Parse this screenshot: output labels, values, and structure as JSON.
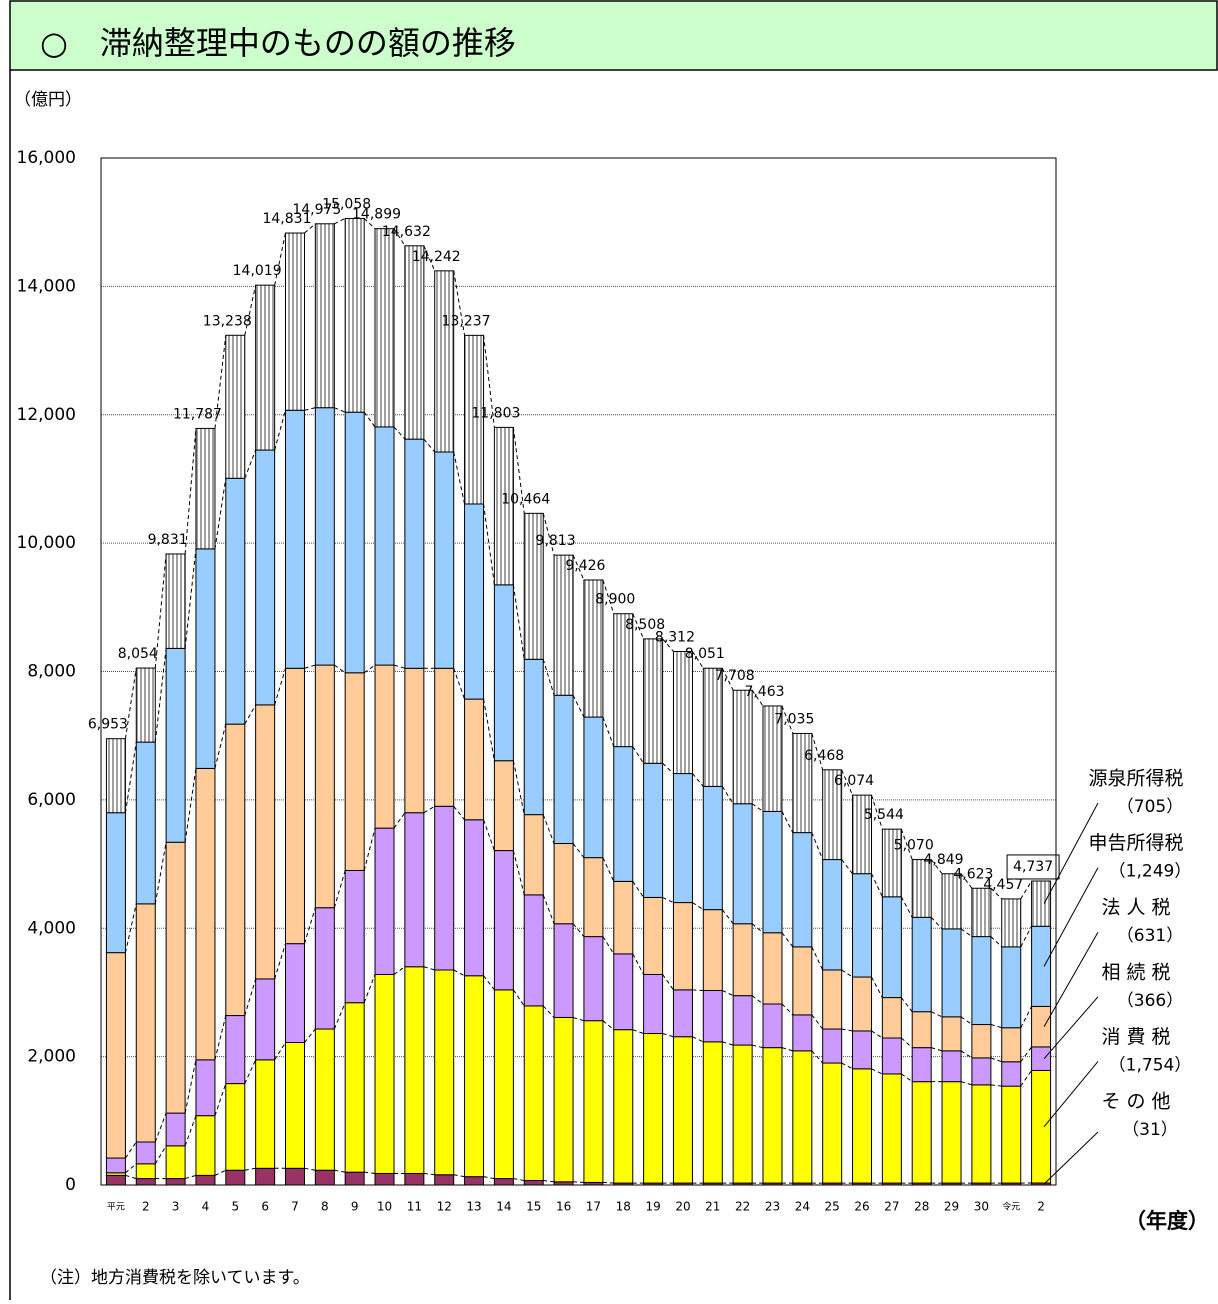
{
  "chart_data": {
    "type": "stacked_bar",
    "title": "○　滞納整理中のものの額の推移",
    "y_unit": "（億円）",
    "x_unit": "（年度）",
    "note": "（注）地方消費税を除いています。",
    "categories": [
      "平元",
      "2",
      "3",
      "4",
      "5",
      "6",
      "7",
      "8",
      "9",
      "10",
      "11",
      "12",
      "13",
      "14",
      "15",
      "16",
      "17",
      "18",
      "19",
      "20",
      "21",
      "22",
      "23",
      "24",
      "25",
      "26",
      "27",
      "28",
      "29",
      "30",
      "令元",
      "2"
    ],
    "totals": [
      6953,
      8054,
      9831,
      11787,
      13238,
      14019,
      14831,
      14975,
      15058,
      14899,
      14632,
      14242,
      13237,
      11803,
      10464,
      9813,
      9426,
      8900,
      8508,
      8312,
      8051,
      7708,
      7463,
      7035,
      6468,
      6074,
      5544,
      5070,
      4849,
      4623,
      4457,
      4737
    ],
    "total_labels": [
      "6,953",
      "8,054",
      "9,831",
      "11,787",
      "13,238",
      "14,019",
      "14,831",
      "14,975",
      "15,058",
      "14,899",
      "14,632",
      "14,242",
      "13,237",
      "11,803",
      "10,464",
      "9,813",
      "9,426",
      "8,900",
      "8,508",
      "8,312",
      "8,051",
      "7,708",
      "7,463",
      "7,035",
      "6,468",
      "6,074",
      "5,544",
      "5,070",
      "4,849",
      "4,623",
      "4,457",
      "4,737"
    ],
    "series": [
      {
        "name": "そ の 他",
        "color": "#993366",
        "annotation": "（31）",
        "values": [
          150,
          100,
          100,
          150,
          230,
          260,
          260,
          230,
          200,
          180,
          180,
          160,
          130,
          100,
          70,
          50,
          40,
          30,
          30,
          30,
          30,
          30,
          30,
          30,
          30,
          30,
          30,
          30,
          30,
          30,
          30,
          31
        ]
      },
      {
        "name": "消 費 税",
        "color": "#ffff00",
        "annotation": "（1,754）",
        "values": [
          40,
          230,
          510,
          930,
          1350,
          1690,
          1960,
          2200,
          2640,
          3100,
          3220,
          3190,
          3130,
          2940,
          2720,
          2560,
          2520,
          2390,
          2330,
          2280,
          2200,
          2150,
          2110,
          2060,
          1870,
          1780,
          1700,
          1580,
          1580,
          1530,
          1510,
          1754
        ]
      },
      {
        "name": "相 続 税",
        "color": "#cc99ff",
        "annotation": "（366）",
        "values": [
          230,
          340,
          510,
          870,
          1060,
          1260,
          1540,
          1890,
          2060,
          2280,
          2400,
          2550,
          2430,
          2170,
          1730,
          1460,
          1310,
          1180,
          920,
          730,
          800,
          770,
          680,
          560,
          530,
          590,
          560,
          530,
          480,
          420,
          380,
          366
        ]
      },
      {
        "name": "法 人 税",
        "color": "#ffcc99",
        "annotation": "（631）",
        "values": [
          3200,
          3710,
          4220,
          4540,
          4540,
          4270,
          4290,
          3780,
          3080,
          2540,
          2250,
          2150,
          1880,
          1400,
          1250,
          1250,
          1230,
          1130,
          1200,
          1360,
          1260,
          1120,
          1110,
          1060,
          920,
          840,
          630,
          560,
          530,
          520,
          530,
          631
        ]
      },
      {
        "name": "申告所得税",
        "color": "#99ccff",
        "annotation": "（1,249）",
        "values": [
          2180,
          2520,
          3020,
          3420,
          3830,
          3970,
          4020,
          4010,
          4060,
          3710,
          3570,
          3370,
          3040,
          2740,
          2420,
          2310,
          2190,
          2100,
          2090,
          2010,
          1920,
          1870,
          1890,
          1780,
          1720,
          1610,
          1570,
          1470,
          1370,
          1370,
          1260,
          1249
        ]
      },
      {
        "name": "源泉所得税",
        "color": "#a0a0a0",
        "pattern": "vertical-stripes",
        "annotation": "（705）",
        "values": [
          1153,
          1154,
          1471,
          1877,
          2228,
          2569,
          2761,
          2865,
          3018,
          3089,
          3012,
          2822,
          2627,
          2453,
          2274,
          2183,
          2136,
          2070,
          1938,
          1902,
          1841,
          1768,
          1643,
          1545,
          1398,
          1224,
          1054,
          900,
          859,
          753,
          747,
          705
        ]
      }
    ],
    "ylim": [
      0,
      16000
    ],
    "yticks": [
      0,
      {
        "value": 2000,
        "label": "2,000"
      },
      {
        "value": 4000,
        "label": "4,000"
      },
      {
        "value": 6000,
        "label": "6,000"
      },
      {
        "value": 8000,
        "label": "8,000"
      },
      {
        "value": 10000,
        "label": "10,000"
      },
      {
        "value": 12000,
        "label": "12,000"
      },
      {
        "value": 14000,
        "label": "14,000"
      },
      {
        "value": 16000,
        "label": "16,000"
      }
    ],
    "grid": true
  }
}
